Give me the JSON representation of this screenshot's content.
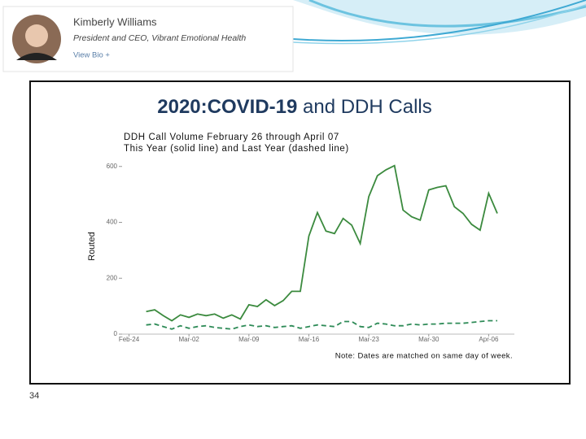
{
  "profile": {
    "name": "Kimberly Williams",
    "title": "President and CEO, Vibrant Emotional Health",
    "link": "View Bio +"
  },
  "slide_title": {
    "bold": "2020:COVID-19",
    "regular": "and DDH Calls"
  },
  "slide_number": "34",
  "chart_data": {
    "type": "line",
    "title": "DDH Call Volume February 26 through April 07",
    "subtitle": "This Year (solid line) and Last Year (dashed line)",
    "y_label": "Routed",
    "note": "Note: Dates are matched on same day of week.",
    "x": [
      "Feb-26",
      "Feb-27",
      "Feb-28",
      "Feb-29",
      "Mar-01",
      "Mar-02",
      "Mar-03",
      "Mar-04",
      "Mar-05",
      "Mar-06",
      "Mar-07",
      "Mar-08",
      "Mar-09",
      "Mar-10",
      "Mar-11",
      "Mar-12",
      "Mar-13",
      "Mar-14",
      "Mar-15",
      "Mar-16",
      "Mar-17",
      "Mar-18",
      "Mar-19",
      "Mar-20",
      "Mar-21",
      "Mar-22",
      "Mar-23",
      "Mar-24",
      "Mar-25",
      "Mar-26",
      "Mar-27",
      "Mar-28",
      "Mar-29",
      "Mar-30",
      "Mar-31",
      "Apr-01",
      "Apr-02",
      "Apr-03",
      "Apr-04",
      "Apr-05",
      "Apr-06",
      "Apr-07"
    ],
    "series": [
      {
        "color": "#3b8a3e",
        "dashed": false,
        "values": [
          81,
          87,
          66,
          48,
          69,
          60,
          72,
          66,
          72,
          57,
          69,
          54,
          105,
          99,
          123,
          102,
          120,
          153,
          153,
          351,
          435,
          369,
          360,
          414,
          390,
          324,
          492,
          567,
          588,
          603,
          444,
          420,
          408,
          516,
          525,
          531,
          456,
          432,
          393,
          372,
          504,
          432
        ]
      },
      {
        "color": "#2e8b57",
        "dashed": true,
        "values": [
          33,
          36,
          27,
          18,
          30,
          21,
          27,
          30,
          24,
          21,
          18,
          27,
          33,
          27,
          30,
          24,
          27,
          30,
          21,
          27,
          33,
          30,
          27,
          45,
          45,
          27,
          24,
          39,
          36,
          30,
          30,
          36,
          33,
          36,
          36,
          39,
          39,
          39,
          42,
          45,
          48,
          48
        ]
      }
    ],
    "xlim": [
      "Feb-23",
      "Apr-09"
    ],
    "xticks": [
      "Feb-24",
      "Mar-02",
      "Mar-09",
      "Mar-16",
      "Mar-23",
      "Mar-30",
      "Apr-06"
    ],
    "ylim": [
      0,
      640
    ],
    "yticks": [
      0,
      200,
      400,
      600
    ],
    "grid": false
  }
}
